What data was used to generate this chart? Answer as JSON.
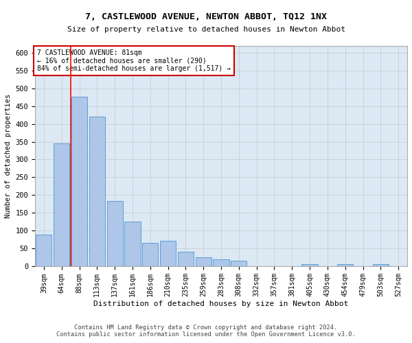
{
  "title": "7, CASTLEWOOD AVENUE, NEWTON ABBOT, TQ12 1NX",
  "subtitle": "Size of property relative to detached houses in Newton Abbot",
  "xlabel": "Distribution of detached houses by size in Newton Abbot",
  "ylabel": "Number of detached properties",
  "footer_line1": "Contains HM Land Registry data © Crown copyright and database right 2024.",
  "footer_line2": "Contains public sector information licensed under the Open Government Licence v3.0.",
  "categories": [
    "39sqm",
    "64sqm",
    "88sqm",
    "113sqm",
    "137sqm",
    "161sqm",
    "186sqm",
    "210sqm",
    "235sqm",
    "259sqm",
    "283sqm",
    "308sqm",
    "332sqm",
    "357sqm",
    "381sqm",
    "405sqm",
    "430sqm",
    "454sqm",
    "479sqm",
    "503sqm",
    "527sqm"
  ],
  "values": [
    88,
    345,
    477,
    420,
    183,
    125,
    65,
    70,
    40,
    25,
    18,
    15,
    0,
    0,
    0,
    5,
    0,
    4,
    0,
    4,
    0
  ],
  "bar_color": "#aec6e8",
  "bar_edge_color": "#5a9fd4",
  "grid_color": "#cccccc",
  "bg_color": "#dce9f5",
  "annotation_box_color": "#cc0000",
  "red_line_x": 1.5,
  "annotation_text_line1": "7 CASTLEWOOD AVENUE: 81sqm",
  "annotation_text_line2": "← 16% of detached houses are smaller (290)",
  "annotation_text_line3": "84% of semi-detached houses are larger (1,517) →",
  "ylim": [
    0,
    620
  ],
  "yticks": [
    0,
    50,
    100,
    150,
    200,
    250,
    300,
    350,
    400,
    450,
    500,
    550,
    600
  ]
}
